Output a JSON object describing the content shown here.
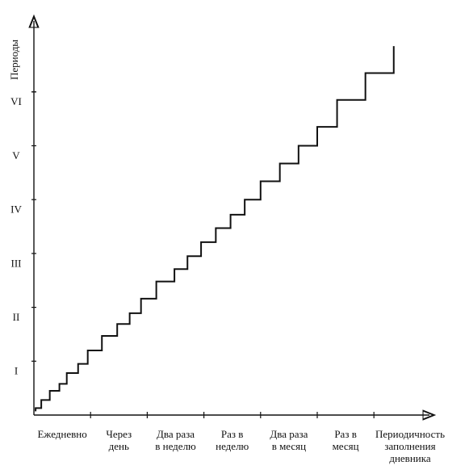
{
  "chart_data": {
    "type": "line",
    "title": "",
    "ylabel": "Периоды",
    "xlabel_lines": [
      "Периодичность",
      "заполнения",
      "дневника"
    ],
    "x_categories": [
      {
        "lines": [
          "Ежедневно"
        ]
      },
      {
        "lines": [
          "Через",
          "день"
        ]
      },
      {
        "lines": [
          "Два раза",
          "в неделю"
        ]
      },
      {
        "lines": [
          "Раз в",
          "неделю"
        ]
      },
      {
        "lines": [
          "Два раза",
          "в месяц"
        ]
      },
      {
        "lines": [
          "Раз в",
          "месяц"
        ]
      }
    ],
    "y_tick_labels": [
      "I",
      "II",
      "III",
      "IV",
      "V",
      "VI"
    ],
    "series": [
      {
        "line_style": "step",
        "steps": [
          [
            0.03,
            0.07
          ],
          [
            0.03,
            0.13
          ],
          [
            0.13,
            0.13
          ],
          [
            0.13,
            0.28
          ],
          [
            0.28,
            0.28
          ],
          [
            0.28,
            0.45
          ],
          [
            0.45,
            0.45
          ],
          [
            0.45,
            0.58
          ],
          [
            0.58,
            0.58
          ],
          [
            0.58,
            0.78
          ],
          [
            0.78,
            0.78
          ],
          [
            0.78,
            0.95
          ],
          [
            0.95,
            0.95
          ],
          [
            0.95,
            1.2
          ],
          [
            1.2,
            1.2
          ],
          [
            1.2,
            1.47
          ],
          [
            1.47,
            1.47
          ],
          [
            1.47,
            1.69
          ],
          [
            1.69,
            1.69
          ],
          [
            1.69,
            1.89
          ],
          [
            1.89,
            1.89
          ],
          [
            1.89,
            2.16
          ],
          [
            2.16,
            2.16
          ],
          [
            2.16,
            2.48
          ],
          [
            2.48,
            2.48
          ],
          [
            2.48,
            2.71
          ],
          [
            2.71,
            2.71
          ],
          [
            2.71,
            2.95
          ],
          [
            2.95,
            2.95
          ],
          [
            2.95,
            3.21
          ],
          [
            3.21,
            3.21
          ],
          [
            3.21,
            3.47
          ],
          [
            3.47,
            3.47
          ],
          [
            3.47,
            3.72
          ],
          [
            3.72,
            3.72
          ],
          [
            3.72,
            4.0
          ],
          [
            4.0,
            4.0
          ],
          [
            4.0,
            4.34
          ],
          [
            4.34,
            4.34
          ],
          [
            4.34,
            4.67
          ],
          [
            4.67,
            4.67
          ],
          [
            4.67,
            5.0
          ],
          [
            5.0,
            5.0
          ],
          [
            5.0,
            5.35
          ],
          [
            5.35,
            5.35
          ],
          [
            5.35,
            5.85
          ],
          [
            5.85,
            5.85
          ],
          [
            5.85,
            6.35
          ],
          [
            6.35,
            6.35
          ],
          [
            6.35,
            6.85
          ]
        ]
      }
    ],
    "grid": false,
    "legend": false
  }
}
